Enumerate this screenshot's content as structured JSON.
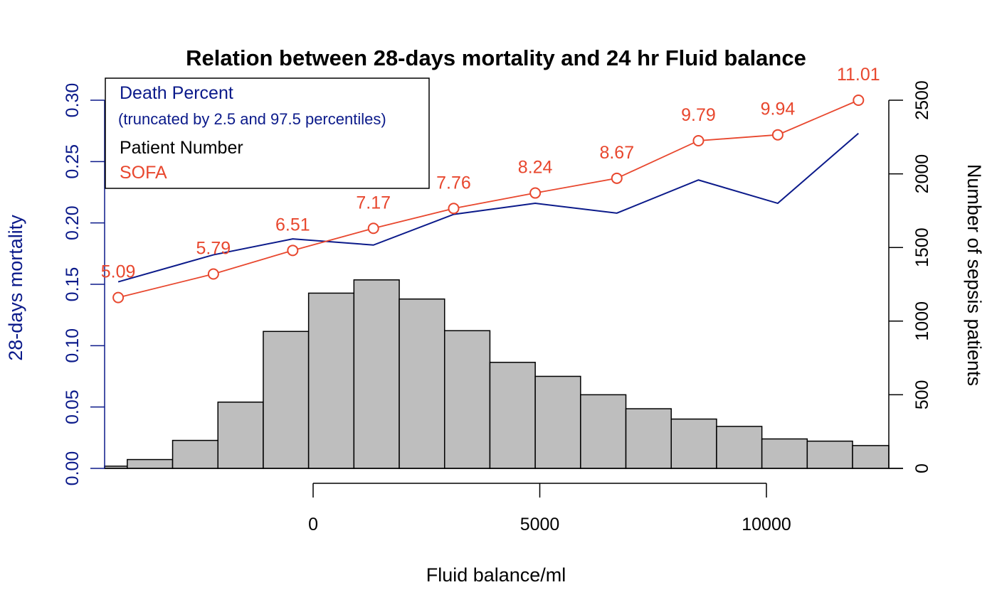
{
  "chart_data": {
    "type": "bar",
    "title": "Relation between 28-days mortality and 24 hr Fluid balance",
    "xlabel": "Fluid balance/ml",
    "ylabel_left": "28-days mortality",
    "ylabel_right": "Number of sepsis patients",
    "x_ticks": [
      "0",
      "5000",
      "10000"
    ],
    "x_tick_values": [
      0,
      5000,
      10000
    ],
    "y_left_ticks": [
      "0.00",
      "0.05",
      "0.10",
      "0.15",
      "0.20",
      "0.25",
      "0.30"
    ],
    "y_left_tick_values": [
      0,
      0.05,
      0.1,
      0.15,
      0.2,
      0.25,
      0.3
    ],
    "y_right_ticks": [
      "0",
      "500",
      "1000",
      "1500",
      "2000",
      "2500"
    ],
    "y_right_tick_values": [
      0,
      500,
      1000,
      1500,
      2000,
      2500
    ],
    "xlim": [
      -4600,
      12700
    ],
    "ylim_left": [
      0,
      0.3
    ],
    "ylim_right": [
      0,
      2500
    ],
    "histogram": {
      "name": "Patient Number",
      "bin_edges": [
        -4600,
        -4100,
        -3100,
        -2100,
        -1100,
        -100,
        900,
        1900,
        2900,
        3900,
        4900,
        5900,
        6900,
        7900,
        8900,
        9900,
        10900,
        11900,
        12700
      ],
      "counts": [
        15,
        60,
        190,
        450,
        930,
        1190,
        1280,
        1150,
        935,
        720,
        625,
        500,
        405,
        335,
        285,
        200,
        185,
        155
      ]
    },
    "series": [
      {
        "name": "Death Percent",
        "x": [
          -4300,
          -2200,
          -450,
          1330,
          3100,
          4900,
          6700,
          8500,
          10250,
          12030
        ],
        "values": [
          0.152,
          0.174,
          0.187,
          0.182,
          0.207,
          0.216,
          0.208,
          0.235,
          0.216,
          0.273
        ]
      },
      {
        "name": "SOFA",
        "x": [
          -4300,
          -2200,
          -450,
          1330,
          3100,
          4900,
          6700,
          8500,
          10250,
          12030
        ],
        "values": [
          5.09,
          5.79,
          6.51,
          7.17,
          7.76,
          8.24,
          8.67,
          9.79,
          9.94,
          11.01
        ],
        "labels": [
          "5.09",
          "5.79",
          "6.51",
          "7.17",
          "7.76",
          "8.24",
          "8.67",
          "9.79",
          "9.94",
          "11.01"
        ],
        "plotted_on_right_axis": [
          1160,
          1320,
          1480,
          1630,
          1765,
          1870,
          1970,
          2225,
          2265,
          2500
        ]
      }
    ],
    "legend": {
      "placement": "top-left",
      "items": [
        {
          "label": "Death Percent",
          "color": "#0b1a8a"
        },
        {
          "label": "(truncated by 2.5 and 97.5 percentiles)",
          "color": "#0b1a8a"
        },
        {
          "label": "Patient Number",
          "color": "#000000"
        },
        {
          "label": "SOFA",
          "color": "#e8472e"
        }
      ]
    },
    "colors": {
      "death_line": "#0b1a8a",
      "sofa": "#e8472e",
      "bar_fill": "#bebebe",
      "bar_stroke": "#000000",
      "axis": "#000000"
    }
  }
}
